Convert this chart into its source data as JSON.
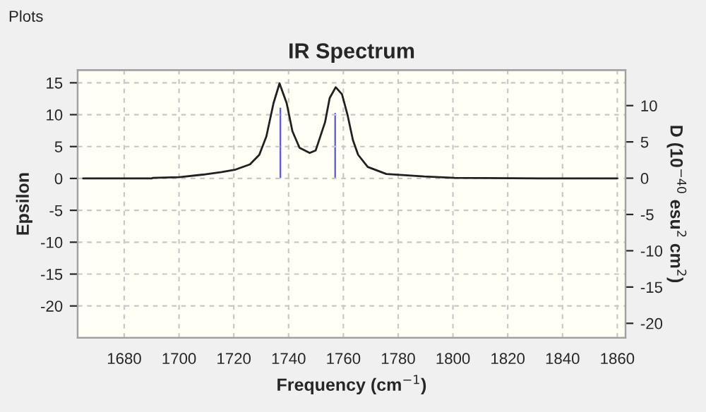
{
  "chart_data": {
    "type": "line",
    "title": "IR Spectrum",
    "xlabel": "Frequency (cm$^{−1}$)",
    "ylabel": "Epsilon",
    "y2label": "D (10$^{−40}$ esu$^{2}$ cm$^{2}$)",
    "annotations": [
      "Plots"
    ],
    "series": [
      {
        "color": "#202020",
        "x": [
          1665,
          1690,
          1690.5,
          1700,
          1708.7,
          1715.6,
          1720.7,
          1725.9,
          1729.3,
          1731.9,
          1734.5,
          1736.7,
          1739.3,
          1741.4,
          1744,
          1747.7,
          1749.9,
          1753.3,
          1755,
          1757.2,
          1759.5,
          1761.5,
          1763.5,
          1765.4,
          1768.9,
          1775.7,
          1789.5,
          1800.6,
          1833,
          1860
        ],
        "values": [
          0,
          0,
          0.1,
          0.2,
          0.6,
          1.0,
          1.4,
          2.2,
          3.7,
          6.6,
          11.8,
          14.9,
          11.8,
          7.4,
          4.8,
          4.0,
          4.4,
          8.8,
          12.6,
          14.3,
          13.2,
          10,
          6,
          3.7,
          1.8,
          0.7,
          0.3,
          0.1,
          0,
          0
        ]
      },
      {
        "type": "bar",
        "axis": "y2",
        "color": "#5a5af0",
        "x": [
          1737,
          1757
        ],
        "values": [
          9.7,
          9.0
        ]
      }
    ],
    "xlim": [
      1663,
      1863
    ],
    "xticks": [
      1680,
      1700,
      1720,
      1740,
      1760,
      1780,
      1800,
      1820,
      1840,
      1860
    ],
    "ylim": [
      -25,
      17
    ],
    "yticks": [
      -20,
      -15,
      -10,
      -5,
      0,
      5,
      10,
      15
    ],
    "y2lim": [
      -22,
      14.9
    ],
    "y2ticks": [
      -20,
      -15,
      -10,
      -5,
      0,
      5,
      10
    ],
    "grid": true,
    "legend": false
  }
}
